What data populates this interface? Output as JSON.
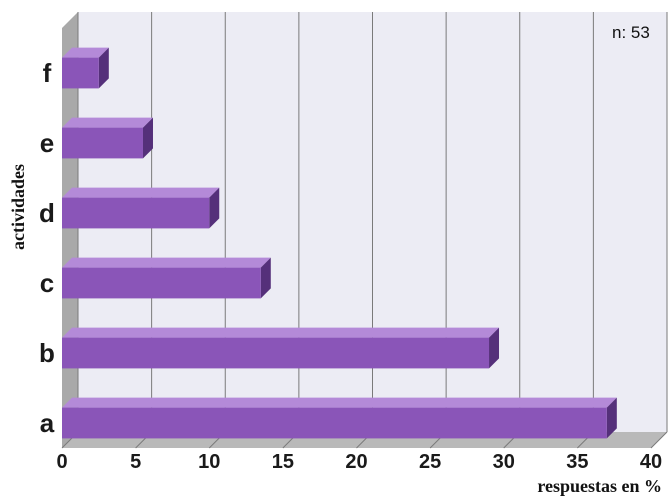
{
  "chart_data": {
    "type": "bar",
    "orientation": "horizontal",
    "categories": [
      "a",
      "b",
      "c",
      "d",
      "e",
      "f"
    ],
    "values": [
      37,
      29,
      13.5,
      10,
      5.5,
      2.5
    ],
    "xlabel": "respuestas en %",
    "ylabel": "actividades",
    "xlim": [
      0,
      40
    ],
    "xticks": [
      0,
      5,
      10,
      15,
      20,
      25,
      30,
      35,
      40
    ],
    "grid": true,
    "sample_note": "n: 53",
    "bar_color": "#8a55b8",
    "bar_top_color": "#b48ad8",
    "bar_side_color": "#55307a",
    "wall_color": "#ececf4",
    "floor_color": "#b9b9b9"
  }
}
